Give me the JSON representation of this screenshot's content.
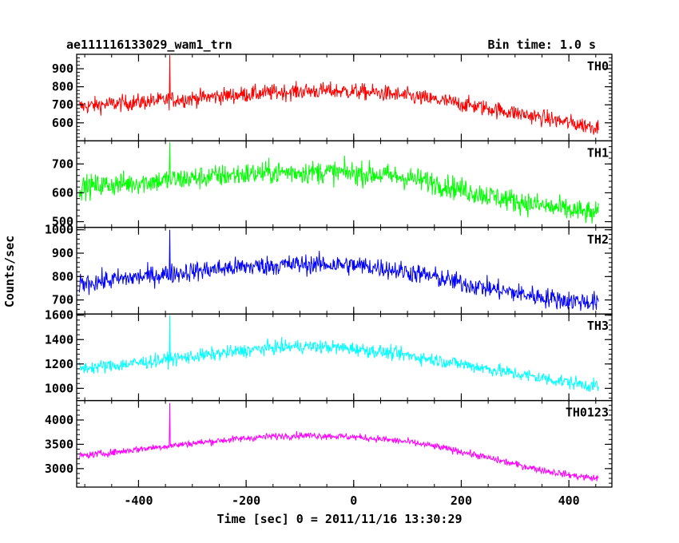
{
  "header": {
    "title": "ae111116133029_wam1_trn",
    "bin_time": "Bin time: 1.0 s"
  },
  "axes": {
    "xlabel": "Time [sec] 0 = 2011/11/16 13:30:29",
    "ylabel": "Counts/sec",
    "x_ticks": [
      "-400",
      "-200",
      "0",
      "200",
      "400"
    ]
  },
  "chart_data": [
    {
      "type": "line",
      "label": "TH0",
      "color": "#ff0000",
      "xlim": [
        -515,
        480
      ],
      "ylim": [
        500,
        980
      ],
      "yticks": [
        600,
        700,
        800,
        900
      ],
      "series": [
        {
          "x": [
            -510,
            -450,
            -400,
            -350,
            -300,
            -250,
            -200,
            -150,
            -100,
            -50,
            0,
            50,
            100,
            150,
            200,
            250,
            300,
            350,
            400,
            455
          ],
          "y": [
            690,
            705,
            715,
            725,
            735,
            748,
            758,
            768,
            775,
            778,
            774,
            765,
            748,
            728,
            705,
            680,
            655,
            628,
            600,
            575
          ]
        }
      ],
      "spike": {
        "x": -342,
        "y": 975
      },
      "noise": 45
    },
    {
      "type": "line",
      "label": "TH1",
      "color": "#00ff00",
      "xlim": [
        -515,
        480
      ],
      "ylim": [
        480,
        780
      ],
      "yticks": [
        500,
        600,
        700
      ],
      "series": [
        {
          "x": [
            -510,
            -450,
            -400,
            -350,
            -300,
            -250,
            -200,
            -150,
            -100,
            -50,
            0,
            50,
            100,
            150,
            200,
            250,
            300,
            350,
            400,
            455
          ],
          "y": [
            620,
            628,
            636,
            643,
            650,
            658,
            665,
            670,
            672,
            672,
            668,
            662,
            652,
            635,
            612,
            590,
            572,
            555,
            540,
            525
          ]
        }
      ],
      "spike": {
        "x": -342,
        "y": 775
      },
      "noise": 40
    },
    {
      "type": "line",
      "label": "TH2",
      "color": "#0000ff",
      "xlim": [
        -515,
        480
      ],
      "ylim": [
        640,
        1010
      ],
      "yticks": [
        700,
        800,
        900,
        1000
      ],
      "series": [
        {
          "x": [
            -510,
            -450,
            -400,
            -350,
            -300,
            -250,
            -200,
            -150,
            -100,
            -50,
            0,
            50,
            100,
            150,
            200,
            250,
            300,
            350,
            400,
            455
          ],
          "y": [
            770,
            785,
            798,
            810,
            822,
            833,
            842,
            848,
            852,
            852,
            848,
            838,
            820,
            798,
            772,
            750,
            730,
            712,
            697,
            690
          ]
        }
      ],
      "spike": {
        "x": -342,
        "y": 1000
      },
      "noise": 42
    },
    {
      "type": "line",
      "label": "TH3",
      "color": "#00ffff",
      "xlim": [
        -515,
        480
      ],
      "ylim": [
        900,
        1610
      ],
      "yticks": [
        1000,
        1200,
        1400,
        1600
      ],
      "series": [
        {
          "x": [
            -510,
            -450,
            -400,
            -350,
            -300,
            -250,
            -200,
            -150,
            -100,
            -50,
            0,
            50,
            100,
            150,
            200,
            250,
            300,
            350,
            400,
            455
          ],
          "y": [
            1165,
            1185,
            1210,
            1235,
            1260,
            1285,
            1310,
            1335,
            1345,
            1340,
            1325,
            1300,
            1270,
            1235,
            1200,
            1160,
            1120,
            1085,
            1050,
            1015
          ]
        }
      ],
      "spike": {
        "x": -342,
        "y": 1600
      },
      "noise": 55
    },
    {
      "type": "line",
      "label": "TH0123",
      "color": "#ff00ff",
      "xlim": [
        -515,
        480
      ],
      "ylim": [
        2620,
        4400
      ],
      "yticks": [
        3000,
        3500,
        4000
      ],
      "series": [
        {
          "x": [
            -510,
            -450,
            -400,
            -350,
            -300,
            -250,
            -200,
            -150,
            -100,
            -50,
            0,
            50,
            100,
            150,
            200,
            250,
            300,
            350,
            400,
            455
          ],
          "y": [
            3260,
            3330,
            3400,
            3460,
            3520,
            3575,
            3625,
            3665,
            3685,
            3675,
            3650,
            3610,
            3550,
            3460,
            3350,
            3220,
            3090,
            2970,
            2870,
            2790
          ]
        }
      ],
      "spike": {
        "x": -342,
        "y": 4350
      },
      "noise": 70
    }
  ]
}
